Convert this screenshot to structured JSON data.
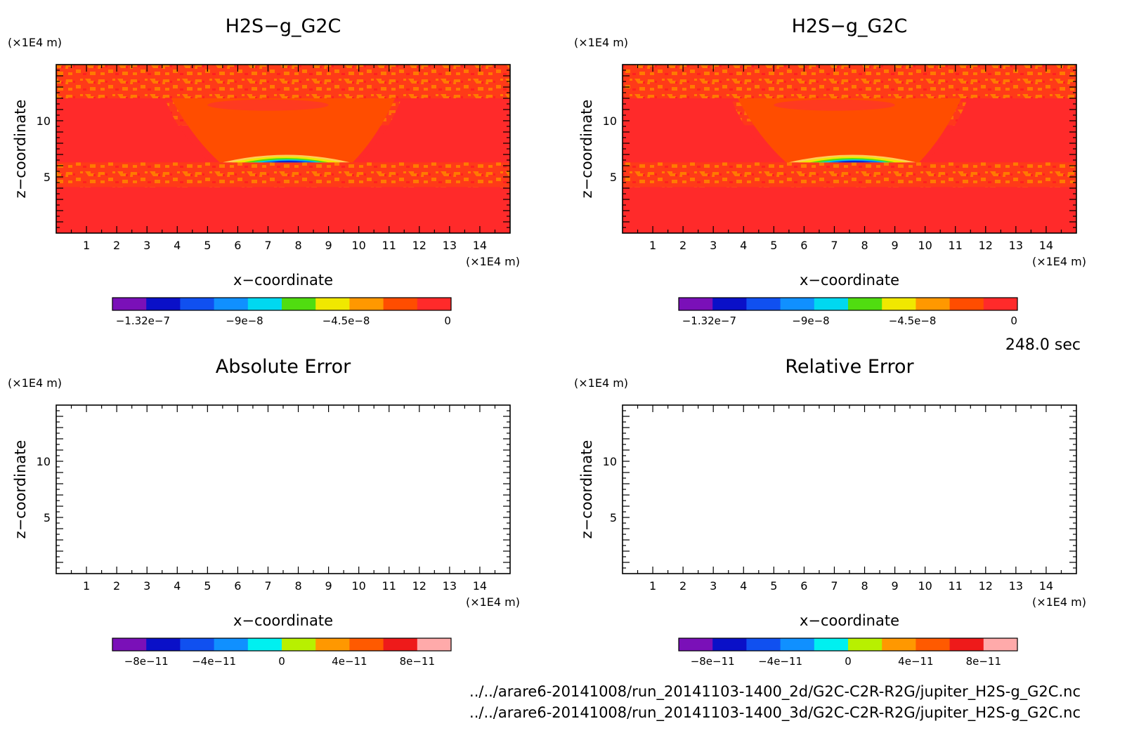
{
  "time_label": "248.0 sec",
  "footer_lines": [
    "../../arare6-20141008/run_20141103-1400_2d/G2C-C2R-R2G/jupiter_H2S-g_G2C.nc",
    "../../arare6-20141008/run_20141103-1400_3d/G2C-C2R-R2G/jupiter_H2S-g_G2C.nc"
  ],
  "colors": {
    "field_background": "#ff2a2a",
    "field_mid": "#ff4d00",
    "field_speckle": "#ff7700"
  },
  "chart_data": [
    {
      "type": "heatmap",
      "title": "H2S−g_G2C",
      "xlabel": "x−coordinate",
      "ylabel": "z−coordinate",
      "x_unit": "(×1E4 m)",
      "y_unit": "(×1E4 m)",
      "xlim": [
        0,
        15
      ],
      "ylim": [
        0,
        15
      ],
      "x_ticks": [
        "1",
        "2",
        "3",
        "4",
        "5",
        "6",
        "7",
        "8",
        "9",
        "10",
        "11",
        "12",
        "13",
        "14"
      ],
      "y_ticks": [
        "5",
        "10"
      ],
      "colorbar": {
        "levels": 10,
        "colors": [
          "#7a10b8",
          "#0a10c8",
          "#1050f0",
          "#1090ff",
          "#00d8f0",
          "#50dd10",
          "#f0e800",
          "#ff9800",
          "#ff4d00",
          "#ff2a2a"
        ],
        "tick_labels": [
          "−1.32e−7",
          "−9e−8",
          "−4.5e−8",
          "0"
        ]
      },
      "filled": true
    },
    {
      "type": "heatmap",
      "title": "H2S−g_G2C",
      "xlabel": "x−coordinate",
      "ylabel": "z−coordinate",
      "x_unit": "(×1E4 m)",
      "y_unit": "(×1E4 m)",
      "xlim": [
        0,
        15
      ],
      "ylim": [
        0,
        15
      ],
      "x_ticks": [
        "1",
        "2",
        "3",
        "4",
        "5",
        "6",
        "7",
        "8",
        "9",
        "10",
        "11",
        "12",
        "13",
        "14"
      ],
      "y_ticks": [
        "5",
        "10"
      ],
      "colorbar": {
        "levels": 10,
        "colors": [
          "#7a10b8",
          "#0a10c8",
          "#1050f0",
          "#1090ff",
          "#00d8f0",
          "#50dd10",
          "#f0e800",
          "#ff9800",
          "#ff4d00",
          "#ff2a2a"
        ],
        "tick_labels": [
          "−1.32e−7",
          "−9e−8",
          "−4.5e−8",
          "0"
        ]
      },
      "filled": true
    },
    {
      "type": "heatmap",
      "title": "Absolute Error",
      "xlabel": "x−coordinate",
      "ylabel": "z−coordinate",
      "x_unit": "(×1E4 m)",
      "y_unit": "(×1E4 m)",
      "xlim": [
        0,
        15
      ],
      "ylim": [
        0,
        15
      ],
      "x_ticks": [
        "1",
        "2",
        "3",
        "4",
        "5",
        "6",
        "7",
        "8",
        "9",
        "10",
        "11",
        "12",
        "13",
        "14"
      ],
      "y_ticks": [
        "5",
        "10"
      ],
      "colorbar": {
        "levels": 10,
        "colors": [
          "#7a10b8",
          "#0a10c8",
          "#1050f0",
          "#1090ff",
          "#00f0f0",
          "#b8f000",
          "#ff9800",
          "#ff5a00",
          "#ee1a1a",
          "#ffaaaa"
        ],
        "tick_labels": [
          "−8e−11",
          "−4e−11",
          "0",
          "4e−11",
          "8e−11"
        ]
      },
      "filled": false
    },
    {
      "type": "heatmap",
      "title": "Relative Error",
      "xlabel": "x−coordinate",
      "ylabel": "z−coordinate",
      "x_unit": "(×1E4 m)",
      "y_unit": "(×1E4 m)",
      "xlim": [
        0,
        15
      ],
      "ylim": [
        0,
        15
      ],
      "x_ticks": [
        "1",
        "2",
        "3",
        "4",
        "5",
        "6",
        "7",
        "8",
        "9",
        "10",
        "11",
        "12",
        "13",
        "14"
      ],
      "y_ticks": [
        "5",
        "10"
      ],
      "colorbar": {
        "levels": 10,
        "colors": [
          "#7a10b8",
          "#0a10c8",
          "#1050f0",
          "#1090ff",
          "#00f0f0",
          "#b8f000",
          "#ff9800",
          "#ff5a00",
          "#ee1a1a",
          "#ffaaaa"
        ],
        "tick_labels": [
          "−8e−11",
          "−4e−11",
          "0",
          "4e−11",
          "8e−11"
        ]
      },
      "filled": false
    }
  ]
}
